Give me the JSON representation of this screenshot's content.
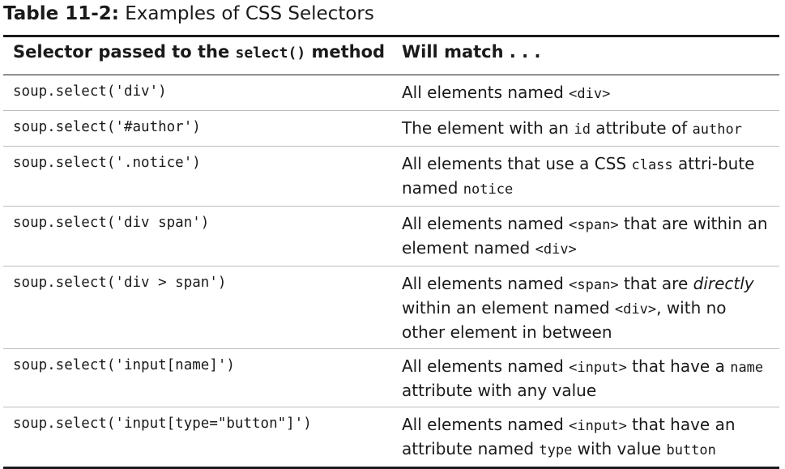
{
  "caption": {
    "number": "Table 11-2:",
    "title": "Examples of CSS Selectors"
  },
  "headers": {
    "selector_prefix": "Selector passed to the ",
    "selector_code": "select()",
    "selector_suffix": " method",
    "match": "Will match . . ."
  },
  "rows": [
    {
      "selector": "soup.select('div')",
      "match": [
        {
          "t": "All elements named "
        },
        {
          "c": "<div>"
        }
      ]
    },
    {
      "selector": "soup.select('#author')",
      "match": [
        {
          "t": "The element with an "
        },
        {
          "c": "id"
        },
        {
          "t": " attribute of "
        },
        {
          "c": "author"
        }
      ]
    },
    {
      "selector": "soup.select('.notice')",
      "match": [
        {
          "t": "All elements that use a CSS "
        },
        {
          "c": "class"
        },
        {
          "t": " attri-bute named "
        },
        {
          "c": "notice"
        }
      ]
    },
    {
      "selector": "soup.select('div span')",
      "match": [
        {
          "t": "All elements named "
        },
        {
          "c": "<span>"
        },
        {
          "t": " that are within an element named "
        },
        {
          "c": "<div>"
        }
      ]
    },
    {
      "selector": "soup.select('div > span')",
      "match": [
        {
          "t": "All elements named "
        },
        {
          "c": "<span>"
        },
        {
          "t": " that are "
        },
        {
          "e": "directly"
        },
        {
          "t": " within an element named "
        },
        {
          "c": "<div>"
        },
        {
          "t": ", with no other element in between"
        }
      ]
    },
    {
      "selector": "soup.select('input[name]')",
      "match": [
        {
          "t": "All elements named "
        },
        {
          "c": "<input>"
        },
        {
          "t": " that have a "
        },
        {
          "c": "name"
        },
        {
          "t": " attribute with any value"
        }
      ]
    },
    {
      "selector": "soup.select('input[type=\"button\"]')",
      "match": [
        {
          "t": "All elements named "
        },
        {
          "c": "<input>"
        },
        {
          "t": " that have an attribute named "
        },
        {
          "c": "type"
        },
        {
          "t": " with value "
        },
        {
          "c": "button"
        }
      ]
    }
  ]
}
